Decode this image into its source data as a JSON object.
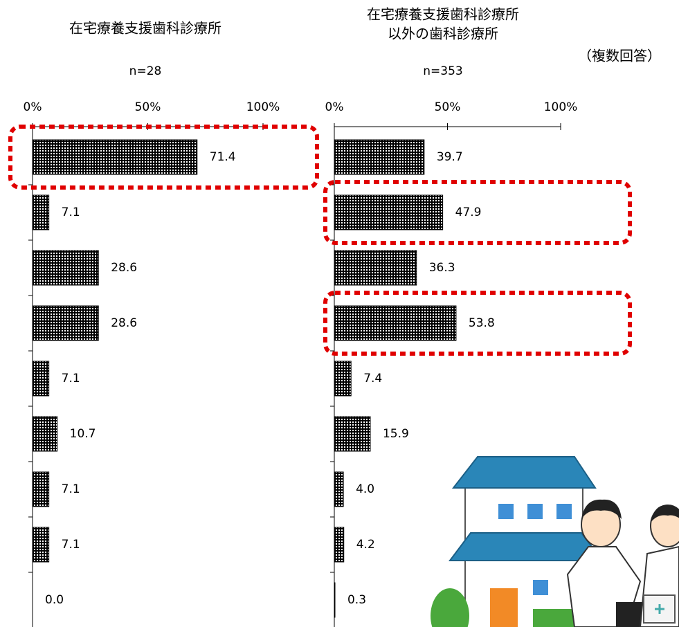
{
  "note": "（複数回答）",
  "chart_data": [
    {
      "type": "bar",
      "orientation": "horizontal",
      "title": [
        "在宅療養支援歯科診療所"
      ],
      "subtitle": "n=28",
      "categories": [
        null,
        null,
        null,
        null,
        null,
        null,
        null,
        null,
        null
      ],
      "values": [
        71.4,
        7.1,
        28.6,
        28.6,
        7.1,
        10.7,
        7.1,
        7.1,
        0.0
      ],
      "value_labels": [
        "71.4",
        "7.1",
        "28.6",
        "28.6",
        "7.1",
        "10.7",
        "7.1",
        "7.1",
        "0.0"
      ],
      "color": "#000000",
      "xlim": [
        0,
        100
      ],
      "xticks": [
        {
          "value": 0,
          "label": "0%"
        },
        {
          "value": 50,
          "label": "50%"
        },
        {
          "value": 100,
          "label": "100%"
        }
      ],
      "highlight": [
        0
      ],
      "highlight_color": "#e00000"
    },
    {
      "type": "bar",
      "orientation": "horizontal",
      "title": [
        "在宅療養支援歯科診療所",
        "以外の歯科診療所"
      ],
      "subtitle": "n=353",
      "categories": [
        null,
        null,
        null,
        null,
        null,
        null,
        null,
        null,
        null
      ],
      "values": [
        39.7,
        47.9,
        36.3,
        53.8,
        7.4,
        15.9,
        4.0,
        4.2,
        0.3
      ],
      "value_labels": [
        "39.7",
        "47.9",
        "36.3",
        "53.8",
        "7.4",
        "15.9",
        "4.0",
        "4.2",
        "0.3"
      ],
      "color": "#000000",
      "xlim": [
        0,
        100
      ],
      "xticks": [
        {
          "value": 0,
          "label": "0%"
        },
        {
          "value": 50,
          "label": "50%"
        },
        {
          "value": 100,
          "label": "100%"
        }
      ],
      "highlight": [
        1,
        3
      ],
      "highlight_color": "#e00000"
    }
  ]
}
